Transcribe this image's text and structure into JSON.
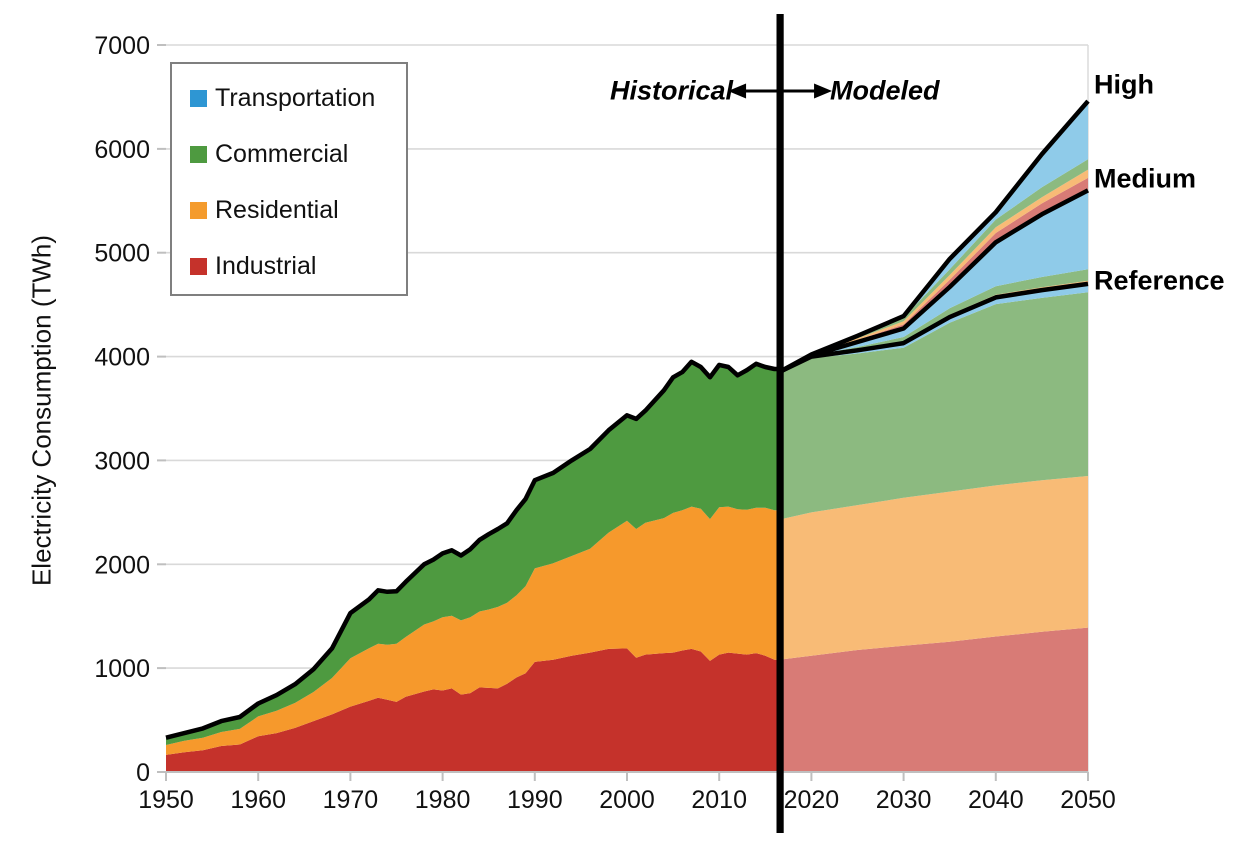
{
  "chart_data": {
    "type": "area",
    "title": "",
    "ylabel": "Electricity Consumption (TWh)",
    "xlabel": "",
    "ylim": [
      0,
      7000
    ],
    "xlim": [
      1950,
      2050
    ],
    "y_ticks": [
      0,
      1000,
      2000,
      3000,
      4000,
      5000,
      6000,
      7000
    ],
    "x_ticks": [
      1950,
      1960,
      1970,
      1980,
      1990,
      2000,
      2010,
      2020,
      2030,
      2040,
      2050
    ],
    "grid": "horizontal",
    "legend_position": "top-left",
    "divider_year": 2016.6,
    "annotations": {
      "left": "Historical",
      "right": "Modeled"
    },
    "scenario_labels": {
      "high": "High",
      "medium": "Medium",
      "reference": "Reference"
    },
    "legend": {
      "items": [
        {
          "label": "Transportation",
          "color": "#2E96D3"
        },
        {
          "label": "Commercial",
          "color": "#4E9A40"
        },
        {
          "label": "Residential",
          "color": "#F49B2D"
        },
        {
          "label": "Industrial",
          "color": "#C5322B"
        }
      ]
    },
    "colors": {
      "historical": {
        "industrial": "#C5322B",
        "residential": "#F6992C",
        "commercial": "#4E9A40",
        "total_line": "#000000"
      },
      "modeled": {
        "industrial": "#D87B76",
        "residential": "#F8BB76",
        "commercial": "#8CBA80",
        "transportation": "#8FCBE9",
        "scenario_line": "#000000"
      },
      "grid": "#D9D9D9",
      "axis": "#BFBFBF",
      "divider": "#000000",
      "text": "#111111"
    },
    "historical": {
      "years": [
        1950,
        1952,
        1954,
        1956,
        1958,
        1960,
        1962,
        1964,
        1966,
        1968,
        1970,
        1972,
        1973,
        1974,
        1975,
        1976,
        1978,
        1979,
        1980,
        1981,
        1982,
        1983,
        1984,
        1985,
        1986,
        1987,
        1988,
        1989,
        1990,
        1992,
        1994,
        1996,
        1998,
        2000,
        2001,
        2002,
        2004,
        2005,
        2006,
        2007,
        2008,
        2009,
        2010,
        2011,
        2012,
        2013,
        2014,
        2015,
        2016,
        2016.7
      ],
      "industrial": [
        165,
        190,
        210,
        250,
        265,
        345,
        375,
        425,
        490,
        555,
        630,
        685,
        715,
        695,
        675,
        725,
        775,
        795,
        785,
        805,
        745,
        760,
        815,
        810,
        805,
        850,
        910,
        950,
        1060,
        1080,
        1120,
        1150,
        1185,
        1190,
        1100,
        1130,
        1145,
        1150,
        1170,
        1185,
        1160,
        1070,
        1130,
        1150,
        1140,
        1130,
        1145,
        1120,
        1080,
        1080
      ],
      "residential": [
        95,
        110,
        120,
        135,
        150,
        190,
        215,
        240,
        280,
        350,
        465,
        505,
        520,
        530,
        560,
        575,
        645,
        655,
        705,
        700,
        715,
        730,
        730,
        755,
        785,
        780,
        790,
        840,
        900,
        930,
        960,
        1000,
        1120,
        1230,
        1240,
        1270,
        1300,
        1345,
        1350,
        1370,
        1375,
        1365,
        1420,
        1405,
        1390,
        1395,
        1400,
        1425,
        1440,
        1440
      ],
      "commercial": [
        70,
        75,
        90,
        105,
        115,
        125,
        150,
        180,
        220,
        285,
        435,
        470,
        515,
        510,
        505,
        530,
        580,
        595,
        615,
        630,
        625,
        655,
        690,
        725,
        750,
        765,
        820,
        840,
        850,
        870,
        920,
        960,
        985,
        1015,
        1060,
        1080,
        1230,
        1305,
        1330,
        1395,
        1365,
        1365,
        1370,
        1345,
        1290,
        1345,
        1385,
        1355,
        1360,
        1360
      ]
    },
    "modeled": {
      "years": [
        2016.5,
        2020,
        2025,
        2030,
        2035,
        2040,
        2045,
        2050
      ],
      "industrial_top": [
        1080,
        1120,
        1175,
        1215,
        1255,
        1305,
        1350,
        1390
      ],
      "residential_top": [
        2430,
        2500,
        2570,
        2640,
        2700,
        2760,
        2810,
        2850
      ],
      "transport_sliver": [
        5,
        15,
        30,
        45,
        55,
        65,
        75,
        80
      ],
      "reference": [
        3850,
        4000,
        4060,
        4130,
        4380,
        4570,
        4640,
        4700
      ],
      "ref_orange_band": [
        0,
        5,
        12,
        18,
        22,
        26,
        28,
        30
      ],
      "ref_green_band": [
        0,
        10,
        32,
        58,
        85,
        108,
        126,
        140
      ],
      "medium": [
        3850,
        4010,
        4140,
        4270,
        4670,
        5100,
        5370,
        5600
      ],
      "med_pink_band": [
        0,
        5,
        20,
        40,
        70,
        90,
        105,
        120
      ],
      "med_orange_band": [
        0,
        10,
        35,
        70,
        115,
        145,
        165,
        200
      ],
      "med_green_band": [
        0,
        15,
        55,
        105,
        170,
        220,
        260,
        300
      ],
      "high": [
        3850,
        4020,
        4200,
        4390,
        4940,
        5390,
        5950,
        6460
      ]
    }
  }
}
